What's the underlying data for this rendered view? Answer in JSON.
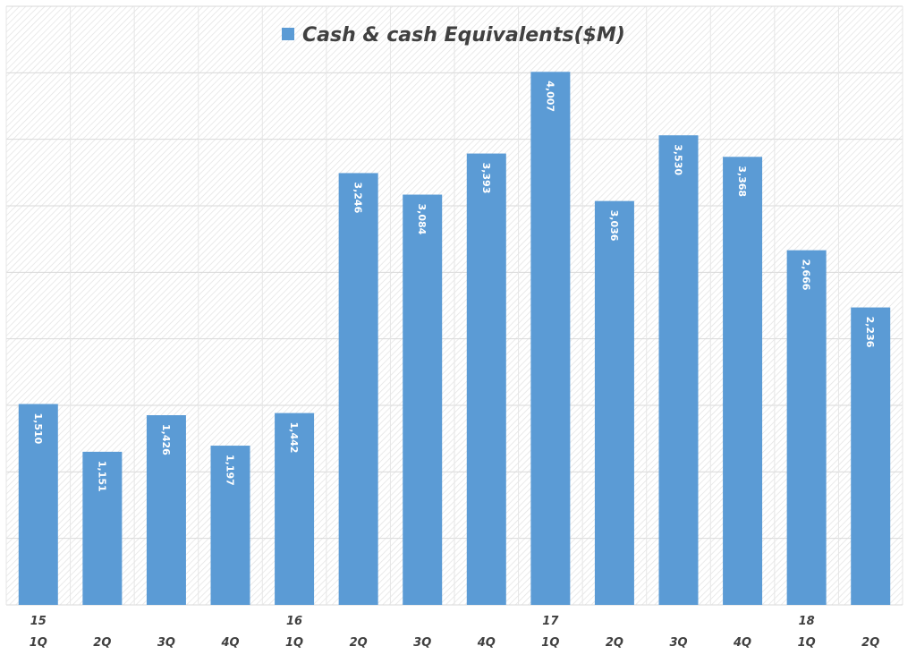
{
  "chart_data": {
    "type": "bar",
    "title": "",
    "categories": [
      [
        "15",
        "1Q"
      ],
      [
        "",
        "2Q"
      ],
      [
        "",
        "3Q"
      ],
      [
        "",
        "4Q"
      ],
      [
        "16",
        "1Q"
      ],
      [
        "",
        "2Q"
      ],
      [
        "",
        "3Q"
      ],
      [
        "",
        "4Q"
      ],
      [
        "17",
        "1Q"
      ],
      [
        "",
        "2Q"
      ],
      [
        "",
        "3Q"
      ],
      [
        "",
        "4Q"
      ],
      [
        "18",
        "1Q"
      ],
      [
        "",
        "2Q"
      ]
    ],
    "series": [
      {
        "name": "Cash & cash Equivalents($M)",
        "values": [
          1510,
          1151,
          1426,
          1197,
          1442,
          3246,
          3084,
          3393,
          4007,
          3036,
          3530,
          3368,
          2666,
          2236
        ],
        "labels": [
          "1,510",
          "1,151",
          "1,426",
          "1,197",
          "1,442",
          "3,246",
          "3,084",
          "3,393",
          "4,007",
          "3,036",
          "3,530",
          "3,368",
          "2,666",
          "2,236"
        ],
        "color": "#5B9BD5"
      }
    ],
    "ylim": [
      0,
      4500
    ],
    "ytick_step": 500,
    "grid": true,
    "legend": "top-center",
    "xlabel": "",
    "ylabel": ""
  }
}
